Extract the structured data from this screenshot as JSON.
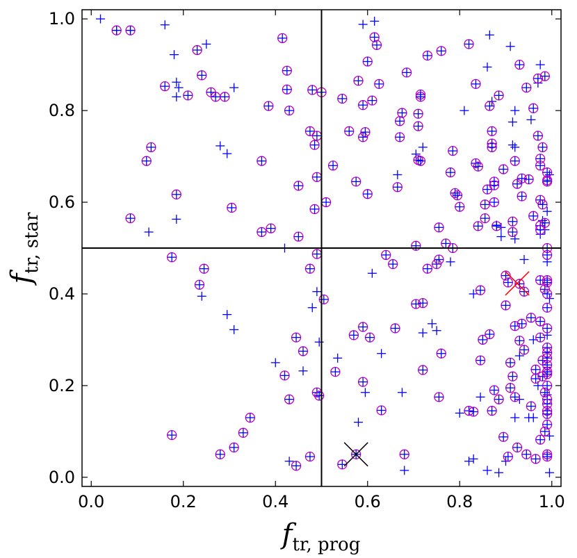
{
  "chart_data": {
    "type": "scatter",
    "title": "",
    "xlabel": "f",
    "xlabel_sub": "tr, prog",
    "ylabel": "f",
    "ylabel_sub": "tr, star",
    "xlim": [
      -0.02,
      1.02
    ],
    "ylim": [
      -0.02,
      1.02
    ],
    "x_ticks": [
      "0.0",
      "0.2",
      "0.4",
      "0.6",
      "0.8",
      "1.0"
    ],
    "y_ticks": [
      "0.0",
      "0.2",
      "0.4",
      "0.6",
      "0.8",
      "1.0"
    ],
    "grid": false,
    "reference_lines": {
      "x": 0.5,
      "y": 0.5
    },
    "colors": {
      "plus": "#0000ff",
      "circle": "#bf00bf",
      "reference_line": "#000000",
      "highlight_red": "#ff0000",
      "highlight_black": "#000000"
    },
    "series": [
      {
        "marker": "plus",
        "values_xy": [
          [
            0.02,
            1.0
          ],
          [
            0.055,
            0.975
          ],
          [
            0.085,
            0.975
          ],
          [
            0.16,
            0.987
          ],
          [
            0.18,
            0.922
          ],
          [
            0.25,
            0.945
          ],
          [
            0.185,
            0.862
          ],
          [
            0.19,
            0.85
          ],
          [
            0.185,
            0.83
          ],
          [
            0.31,
            0.85
          ],
          [
            0.28,
            0.723
          ],
          [
            0.295,
            0.706
          ],
          [
            0.125,
            0.535
          ],
          [
            0.185,
            0.563
          ],
          [
            0.42,
            0.5
          ],
          [
            0.24,
            0.395
          ],
          [
            0.295,
            0.355
          ],
          [
            0.31,
            0.322
          ],
          [
            0.4,
            0.25
          ],
          [
            0.46,
            0.232
          ],
          [
            0.48,
            0.37
          ],
          [
            0.49,
            0.405
          ],
          [
            0.495,
            0.295
          ],
          [
            0.43,
            0.035
          ],
          [
            0.535,
            0.26
          ],
          [
            0.59,
            0.988
          ],
          [
            0.615,
            0.995
          ],
          [
            0.58,
            0.12
          ],
          [
            0.595,
            0.185
          ],
          [
            0.63,
            0.27
          ],
          [
            0.61,
            0.445
          ],
          [
            0.665,
            0.66
          ],
          [
            0.675,
            0.185
          ],
          [
            0.68,
            0.015
          ],
          [
            0.705,
            0.705
          ],
          [
            0.72,
            0.72
          ],
          [
            0.72,
            0.315
          ],
          [
            0.74,
            0.335
          ],
          [
            0.75,
            0.32
          ],
          [
            0.78,
            0.47
          ],
          [
            0.8,
            0.14
          ],
          [
            0.81,
            0.8
          ],
          [
            0.83,
            0.4
          ],
          [
            0.82,
            0.035
          ],
          [
            0.83,
            0.04
          ],
          [
            0.845,
            0.175
          ],
          [
            0.86,
            0.895
          ],
          [
            0.865,
            0.965
          ],
          [
            0.86,
            0.015
          ],
          [
            0.87,
            0.82
          ],
          [
            0.88,
            0.55
          ],
          [
            0.885,
            0.01
          ],
          [
            0.89,
            0.545
          ],
          [
            0.89,
            0.525
          ],
          [
            0.9,
            0.035
          ],
          [
            0.91,
            0.94
          ],
          [
            0.915,
            0.725
          ],
          [
            0.915,
            0.775
          ],
          [
            0.92,
            0.8
          ],
          [
            0.92,
            0.72
          ],
          [
            0.92,
            0.52
          ],
          [
            0.92,
            0.13
          ],
          [
            0.93,
            0.17
          ],
          [
            0.93,
            0.265
          ],
          [
            0.94,
            0.475
          ],
          [
            0.95,
            0.13
          ],
          [
            0.955,
            0.78
          ],
          [
            0.96,
            0.13
          ],
          [
            0.96,
            0.3
          ],
          [
            0.97,
            0.86
          ],
          [
            0.97,
            0.2
          ],
          [
            0.975,
            0.9
          ],
          [
            0.975,
            0.53
          ],
          [
            0.98,
            0.56
          ],
          [
            0.985,
            0.54
          ],
          [
            0.99,
            0.58
          ],
          [
            0.99,
            0.47
          ],
          [
            0.99,
            0.31
          ],
          [
            0.99,
            0.24
          ],
          [
            0.99,
            0.18
          ],
          [
            0.995,
            0.09
          ],
          [
            0.995,
            0.01
          ],
          [
            0.995,
            0.66
          ],
          [
            0.995,
            0.39
          ]
        ]
      },
      {
        "marker": "circled-plus",
        "values_xy": [
          [
            0.055,
            0.975
          ],
          [
            0.085,
            0.975
          ],
          [
            0.16,
            0.853
          ],
          [
            0.23,
            0.932
          ],
          [
            0.24,
            0.877
          ],
          [
            0.21,
            0.833
          ],
          [
            0.26,
            0.84
          ],
          [
            0.27,
            0.83
          ],
          [
            0.29,
            0.83
          ],
          [
            0.12,
            0.69
          ],
          [
            0.13,
            0.72
          ],
          [
            0.085,
            0.565
          ],
          [
            0.185,
            0.617
          ],
          [
            0.305,
            0.588
          ],
          [
            0.37,
            0.69
          ],
          [
            0.385,
            0.81
          ],
          [
            0.415,
            0.958
          ],
          [
            0.425,
            0.887
          ],
          [
            0.425,
            0.846
          ],
          [
            0.43,
            0.8
          ],
          [
            0.37,
            0.535
          ],
          [
            0.39,
            0.543
          ],
          [
            0.45,
            0.525
          ],
          [
            0.45,
            0.636
          ],
          [
            0.475,
            0.755
          ],
          [
            0.48,
            0.845
          ],
          [
            0.49,
            0.745
          ],
          [
            0.485,
            0.725
          ],
          [
            0.49,
            0.655
          ],
          [
            0.485,
            0.585
          ],
          [
            0.5,
            0.84
          ],
          [
            0.51,
            0.6
          ],
          [
            0.525,
            0.68
          ],
          [
            0.175,
            0.48
          ],
          [
            0.235,
            0.42
          ],
          [
            0.245,
            0.455
          ],
          [
            0.475,
            0.455
          ],
          [
            0.49,
            0.487
          ],
          [
            0.46,
            0.275
          ],
          [
            0.445,
            0.305
          ],
          [
            0.42,
            0.222
          ],
          [
            0.43,
            0.17
          ],
          [
            0.49,
            0.185
          ],
          [
            0.495,
            0.178
          ],
          [
            0.505,
            0.388
          ],
          [
            0.53,
            0.23
          ],
          [
            0.175,
            0.092
          ],
          [
            0.28,
            0.05
          ],
          [
            0.31,
            0.065
          ],
          [
            0.33,
            0.097
          ],
          [
            0.345,
            0.13
          ],
          [
            0.445,
            0.025
          ],
          [
            0.475,
            0.045
          ],
          [
            0.545,
            0.028
          ],
          [
            0.575,
            0.05
          ],
          [
            0.545,
            0.826
          ],
          [
            0.56,
            0.755
          ],
          [
            0.575,
            0.645
          ],
          [
            0.57,
            0.31
          ],
          [
            0.58,
            0.865
          ],
          [
            0.59,
            0.812
          ],
          [
            0.59,
            0.742
          ],
          [
            0.595,
            0.753
          ],
          [
            0.6,
            0.907
          ],
          [
            0.61,
            0.822
          ],
          [
            0.605,
            0.305
          ],
          [
            0.59,
            0.328
          ],
          [
            0.59,
            0.208
          ],
          [
            0.6,
            0.618
          ],
          [
            0.62,
            0.943
          ],
          [
            0.625,
            0.858
          ],
          [
            0.615,
            0.96
          ],
          [
            0.63,
            0.146
          ],
          [
            0.64,
            0.485
          ],
          [
            0.655,
            0.465
          ],
          [
            0.66,
            0.325
          ],
          [
            0.665,
            0.633
          ],
          [
            0.67,
            0.742
          ],
          [
            0.67,
            0.777
          ],
          [
            0.675,
            0.795
          ],
          [
            0.685,
            0.883
          ],
          [
            0.68,
            0.05
          ],
          [
            0.705,
            0.378
          ],
          [
            0.71,
            0.692
          ],
          [
            0.71,
            0.766
          ],
          [
            0.71,
            0.793
          ],
          [
            0.715,
            0.835
          ],
          [
            0.715,
            0.83
          ],
          [
            0.705,
            0.505
          ],
          [
            0.715,
            0.69
          ],
          [
            0.72,
            0.38
          ],
          [
            0.72,
            0.234
          ],
          [
            0.73,
            0.92
          ],
          [
            0.73,
            0.455
          ],
          [
            0.75,
            0.465
          ],
          [
            0.755,
            0.475
          ],
          [
            0.76,
            0.93
          ],
          [
            0.755,
            0.545
          ],
          [
            0.755,
            0.175
          ],
          [
            0.76,
            0.27
          ],
          [
            0.77,
            0.51
          ],
          [
            0.78,
            0.665
          ],
          [
            0.785,
            0.712
          ],
          [
            0.785,
            0.5
          ],
          [
            0.79,
            0.62
          ],
          [
            0.795,
            0.615
          ],
          [
            0.8,
            0.59
          ],
          [
            0.82,
            0.945
          ],
          [
            0.82,
            0.145
          ],
          [
            0.83,
            0.143
          ],
          [
            0.835,
            0.858
          ],
          [
            0.835,
            0.685
          ],
          [
            0.84,
            0.678
          ],
          [
            0.84,
            0.548
          ],
          [
            0.845,
            0.408
          ],
          [
            0.845,
            0.255
          ],
          [
            0.85,
            0.3
          ],
          [
            0.855,
            0.565
          ],
          [
            0.855,
            0.595
          ],
          [
            0.86,
            0.628
          ],
          [
            0.865,
            0.81
          ],
          [
            0.87,
            0.755
          ],
          [
            0.87,
            0.728
          ],
          [
            0.87,
            0.72
          ],
          [
            0.875,
            0.645
          ],
          [
            0.875,
            0.637
          ],
          [
            0.875,
            0.6
          ],
          [
            0.88,
            0.548
          ],
          [
            0.885,
            0.833
          ],
          [
            0.87,
            0.145
          ],
          [
            0.865,
            0.312
          ],
          [
            0.875,
            0.19
          ],
          [
            0.885,
            0.17
          ],
          [
            0.895,
            0.672
          ],
          [
            0.895,
            0.088
          ],
          [
            0.9,
            0.375
          ],
          [
            0.9,
            0.44
          ],
          [
            0.905,
            0.045
          ],
          [
            0.905,
            0.425
          ],
          [
            0.91,
            0.25
          ],
          [
            0.91,
            0.195
          ],
          [
            0.915,
            0.22
          ],
          [
            0.915,
            0.535
          ],
          [
            0.915,
            0.558
          ],
          [
            0.92,
            0.69
          ],
          [
            0.92,
            0.33
          ],
          [
            0.92,
            0.175
          ],
          [
            0.925,
            0.64
          ],
          [
            0.925,
            0.065
          ],
          [
            0.93,
            0.298
          ],
          [
            0.93,
            0.9
          ],
          [
            0.93,
            0.422
          ],
          [
            0.935,
            0.652
          ],
          [
            0.935,
            0.613
          ],
          [
            0.935,
            0.335
          ],
          [
            0.94,
            0.405
          ],
          [
            0.94,
            0.278
          ],
          [
            0.945,
            0.05
          ],
          [
            0.945,
            0.85
          ],
          [
            0.95,
            0.65
          ],
          [
            0.955,
            0.348
          ],
          [
            0.955,
            0.155
          ],
          [
            0.96,
            0.805
          ],
          [
            0.96,
            0.57
          ],
          [
            0.965,
            0.04
          ],
          [
            0.965,
            0.235
          ],
          [
            0.965,
            0.215
          ],
          [
            0.97,
            0.87
          ],
          [
            0.97,
            0.745
          ],
          [
            0.975,
            0.695
          ],
          [
            0.975,
            0.68
          ],
          [
            0.975,
            0.605
          ],
          [
            0.975,
            0.549
          ],
          [
            0.975,
            0.54
          ],
          [
            0.975,
            0.43
          ],
          [
            0.975,
            0.34
          ],
          [
            0.975,
            0.305
          ],
          [
            0.975,
            0.082
          ],
          [
            0.98,
            0.72
          ],
          [
            0.98,
            0.595
          ],
          [
            0.98,
            0.255
          ],
          [
            0.98,
            0.22
          ],
          [
            0.985,
            0.875
          ],
          [
            0.985,
            0.555
          ],
          [
            0.985,
            0.41
          ],
          [
            0.985,
            0.185
          ],
          [
            0.985,
            0.1
          ],
          [
            0.99,
            0.665
          ],
          [
            0.99,
            0.648
          ],
          [
            0.99,
            0.645
          ],
          [
            0.99,
            0.5
          ],
          [
            0.99,
            0.485
          ],
          [
            0.99,
            0.43
          ],
          [
            0.99,
            0.425
          ],
          [
            0.99,
            0.4
          ],
          [
            0.99,
            0.37
          ],
          [
            0.99,
            0.325
          ],
          [
            0.99,
            0.283
          ],
          [
            0.99,
            0.272
          ],
          [
            0.99,
            0.26
          ],
          [
            0.99,
            0.245
          ],
          [
            0.99,
            0.23
          ],
          [
            0.99,
            0.23
          ],
          [
            0.99,
            0.225
          ],
          [
            0.99,
            0.2
          ],
          [
            0.99,
            0.17
          ],
          [
            0.99,
            0.16
          ],
          [
            0.99,
            0.145
          ],
          [
            0.99,
            0.138
          ],
          [
            0.99,
            0.115
          ],
          [
            0.99,
            0.05
          ],
          [
            0.99,
            0.045
          ]
        ]
      }
    ],
    "highlights": [
      {
        "marker": "x",
        "color": "red",
        "x": 0.925,
        "y": 0.423
      },
      {
        "marker": "x",
        "color": "black",
        "x": 0.575,
        "y": 0.05
      }
    ]
  }
}
